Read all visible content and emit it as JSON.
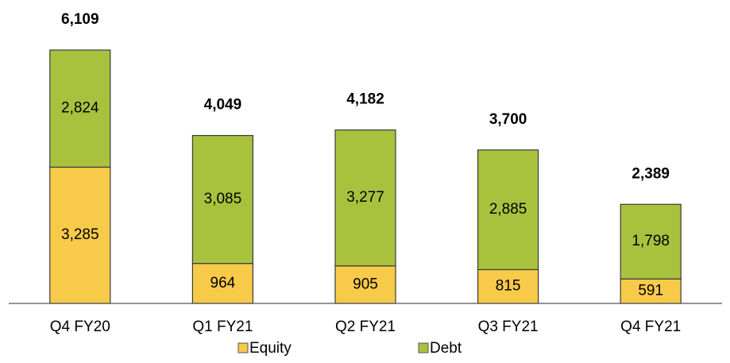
{
  "chart_data": {
    "type": "stacked_bar",
    "categories": [
      "Q4 FY20",
      "Q1 FY21",
      "Q2 FY21",
      "Q3 FY21",
      "Q4 FY21"
    ],
    "series": [
      {
        "name": "Equity",
        "color": "#f8ca4a",
        "values": [
          3285,
          964,
          905,
          815,
          591
        ],
        "value_labels": [
          "3,285",
          "964",
          "905",
          "815",
          "591"
        ]
      },
      {
        "name": "Debt",
        "color": "#a8c23e",
        "values": [
          2824,
          3085,
          3277,
          2885,
          1798
        ],
        "value_labels": [
          "2,824",
          "3,085",
          "3,277",
          "2,885",
          "1,798"
        ]
      }
    ],
    "totals": [
      6109,
      4049,
      4182,
      3700,
      2389
    ],
    "total_labels": [
      "6,109",
      "4,049",
      "4,182",
      "3,700",
      "2,389"
    ],
    "legend": "bottom"
  }
}
